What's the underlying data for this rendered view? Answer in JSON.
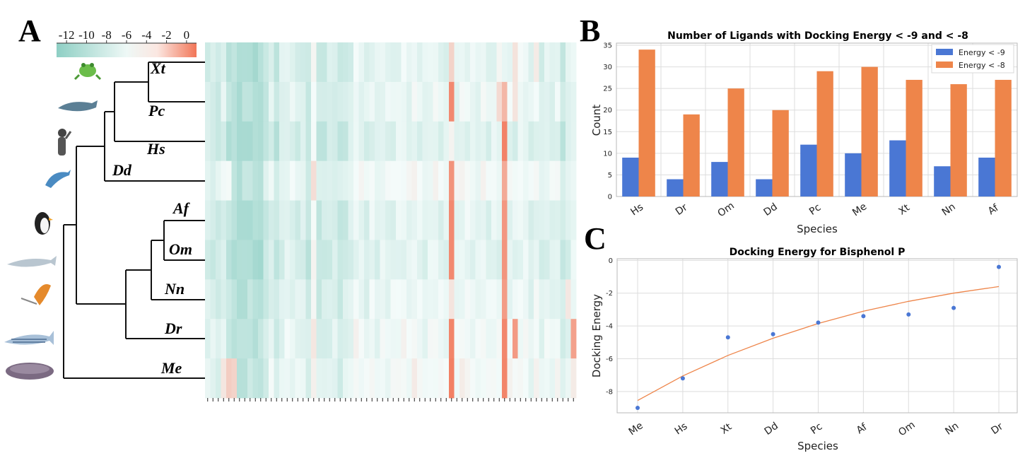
{
  "panels": {
    "A": "A",
    "B": "B",
    "C": "C"
  },
  "colors": {
    "blue": "#4a77d4",
    "orange": "#ee854a",
    "heat_low": "#8ecfc4",
    "heat_mid": "#f4fbfa",
    "heat_high": "#f27658",
    "grid": "#dddddd",
    "frame": "#b8b8b8"
  },
  "chart_data": [
    {
      "type": "heatmap",
      "panel": "A",
      "rows": [
        "Xt",
        "Pc",
        "Hs",
        "Dd",
        "Af",
        "Om",
        "Nn",
        "Dr",
        "Me"
      ],
      "n_columns": 70,
      "colorbar": {
        "ticks": [
          -12,
          -10,
          -8,
          -6,
          -4,
          -2,
          0
        ],
        "range": [
          -13,
          1
        ]
      },
      "base_pattern": [
        -7.6,
        -7.9,
        -8.3,
        -7.2,
        -9.3,
        -9.8,
        -10.6,
        -10.2,
        -9.9,
        -10.4,
        -10.3,
        -8.7,
        -7.3,
        -8.9,
        -7.4,
        -6.9,
        -7.1,
        -7.6,
        -7.4,
        -8.8,
        -5.1,
        -8.6,
        -8.3,
        -7.8,
        -7.7,
        -8.7,
        -8.1,
        -7.4,
        -6.1,
        -6.6,
        -7.3,
        -6.5,
        -7.1,
        -6.6,
        -6.9,
        -6.8,
        -6.4,
        -6.2,
        -6.7,
        -6.0,
        -6.6,
        -7.0,
        -6.5,
        -6.2,
        -6.8,
        -6.9,
        -6.4,
        -6.6,
        -6.1,
        -6.3,
        -6.6,
        -6.8,
        -6.2,
        -6.9,
        -6.5,
        -6.7,
        -6.6,
        -6.5,
        -6.8,
        -6.2,
        -6.4,
        -7.3,
        -6.3,
        -7.5,
        -6.9,
        -7.1,
        -6.6,
        -8.5,
        -7.3,
        -6.5
      ],
      "row_offsets": [
        -0.4,
        -0.1,
        -0.8,
        0.6,
        -0.5,
        -0.6,
        0.0,
        0.4,
        0.7
      ],
      "overrides": [
        {
          "row": "Xt",
          "cols": {
            "46": -3.2,
            "55": -5.4,
            "58": -4.1,
            "62": -4.6
          }
        },
        {
          "row": "Pc",
          "cols": {
            "46": 0.2,
            "55": -3.6,
            "56": -1.8,
            "58": -4.2
          }
        },
        {
          "row": "Hs",
          "cols": {
            "46": -5.2,
            "56": 0.5
          }
        },
        {
          "row": "Dd",
          "cols": {
            "4": -5.8,
            "46": -0.2,
            "56": -1.2
          }
        },
        {
          "row": "Af",
          "cols": {
            "46": 0.2,
            "56": -0.4
          }
        },
        {
          "row": "Om",
          "cols": {
            "46": 0.2,
            "56": -0.3
          }
        },
        {
          "row": "Nn",
          "cols": {
            "46": -4.2,
            "56": -0.6,
            "68": -4.4
          }
        },
        {
          "row": "Dr",
          "cols": {
            "46": 0.4,
            "56": 0.3,
            "58": -0.5,
            "69": -0.8
          }
        },
        {
          "row": "Me",
          "cols": {
            "3": -4.3,
            "4": -2.9,
            "5": -3.2,
            "46": 0.6,
            "56": 0.4,
            "69": -4.6
          }
        }
      ]
    },
    {
      "type": "bar",
      "panel": "B",
      "title": "Number of Ligands with Docking Energy < -9 and < -8",
      "categories": [
        "Hs",
        "Dr",
        "Om",
        "Dd",
        "Pc",
        "Me",
        "Xt",
        "Nn",
        "Af"
      ],
      "series": [
        {
          "name": "Energy < -9",
          "values": [
            9,
            4,
            8,
            4,
            12,
            10,
            13,
            7,
            9
          ]
        },
        {
          "name": "Energy < -8",
          "values": [
            34,
            19,
            25,
            20,
            29,
            30,
            27,
            26,
            27
          ]
        }
      ],
      "xlabel": "Species",
      "ylabel": "Count",
      "ylim": [
        0,
        35.5
      ],
      "yticks": [
        0,
        5,
        10,
        15,
        20,
        25,
        30,
        35
      ],
      "grid": true,
      "legend": "top-right"
    },
    {
      "type": "scatter",
      "panel": "C",
      "title": "Docking Energy for Bisphenol P",
      "categories": [
        "Me",
        "Hs",
        "Xt",
        "Dd",
        "Pc",
        "Af",
        "Om",
        "Nn",
        "Dr"
      ],
      "points": [
        -9.0,
        -7.2,
        -4.7,
        -4.5,
        -3.8,
        -3.4,
        -3.3,
        -2.9,
        -0.4
      ],
      "trend": [
        -8.55,
        -7.05,
        -5.8,
        -4.75,
        -3.85,
        -3.1,
        -2.5,
        -2.0,
        -1.6
      ],
      "xlabel": "Species",
      "ylabel": "Docking Energy",
      "ylim": [
        -9.3,
        0.1
      ],
      "yticks": [
        0,
        -2,
        -4,
        -6,
        -8
      ],
      "grid": true
    }
  ]
}
